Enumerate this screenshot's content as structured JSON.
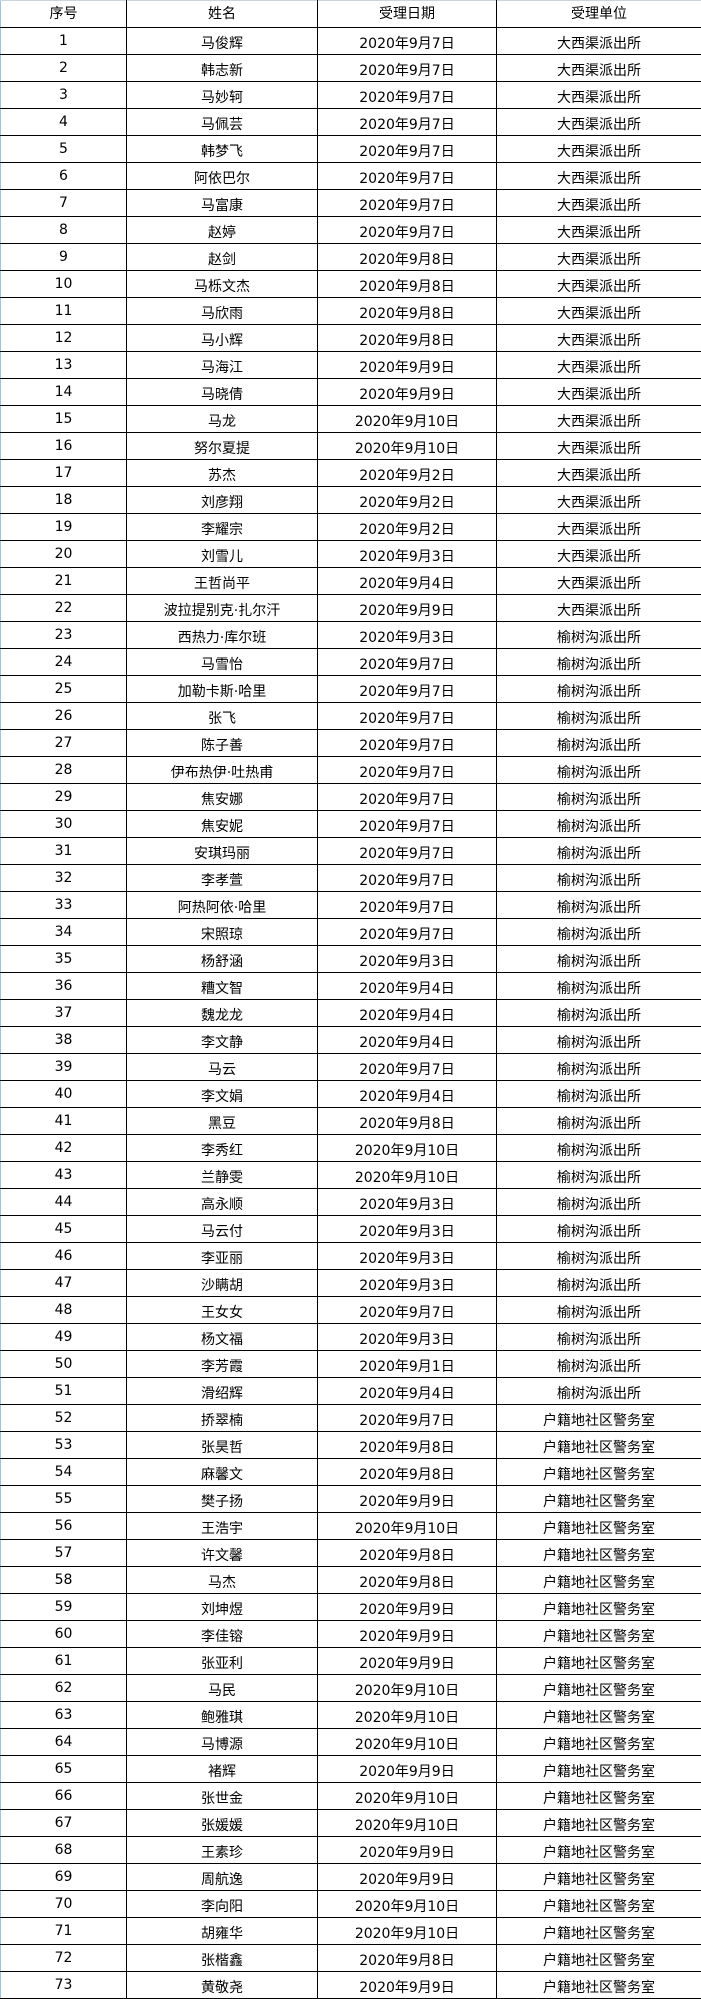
{
  "headers": [
    "序号",
    "姓名",
    "受理日期",
    "受理单位"
  ],
  "rows": [
    [
      "1",
      "马俊辉",
      "2020年9月7日",
      "大西渠派出所"
    ],
    [
      "2",
      "韩志新",
      "2020年9月7日",
      "大西渠派出所"
    ],
    [
      "3",
      "马妙轲",
      "2020年9月7日",
      "大西渠派出所"
    ],
    [
      "4",
      "马佩芸",
      "2020年9月7日",
      "大西渠派出所"
    ],
    [
      "5",
      "韩梦飞",
      "2020年9月7日",
      "大西渠派出所"
    ],
    [
      "6",
      "阿依巴尔",
      "2020年9月7日",
      "大西渠派出所"
    ],
    [
      "7",
      "马富康",
      "2020年9月7日",
      "大西渠派出所"
    ],
    [
      "8",
      "赵婷",
      "2020年9月7日",
      "大西渠派出所"
    ],
    [
      "9",
      "赵剑",
      "2020年9月8日",
      "大西渠派出所"
    ],
    [
      "10",
      "马栎文杰",
      "2020年9月8日",
      "大西渠派出所"
    ],
    [
      "11",
      "马欣雨",
      "2020年9月8日",
      "大西渠派出所"
    ],
    [
      "12",
      "马小辉",
      "2020年9月8日",
      "大西渠派出所"
    ],
    [
      "13",
      "马海江",
      "2020年9月9日",
      "大西渠派出所"
    ],
    [
      "14",
      "马晓倩",
      "2020年9月9日",
      "大西渠派出所"
    ],
    [
      "15",
      "马龙",
      "2020年9月10日",
      "大西渠派出所"
    ],
    [
      "16",
      "努尔夏提",
      "2020年9月10日",
      "大西渠派出所"
    ],
    [
      "17",
      "苏杰",
      "2020年9月2日",
      "大西渠派出所"
    ],
    [
      "18",
      "刘彦翔",
      "2020年9月2日",
      "大西渠派出所"
    ],
    [
      "19",
      "李耀宗",
      "2020年9月2日",
      "大西渠派出所"
    ],
    [
      "20",
      "刘雪儿",
      "2020年9月3日",
      "大西渠派出所"
    ],
    [
      "21",
      "王哲尚平",
      "2020年9月4日",
      "大西渠派出所"
    ],
    [
      "22",
      "波拉提别克·扎尔汗",
      "2020年9月9日",
      "大西渠派出所"
    ],
    [
      "23",
      "西热力·库尔班",
      "2020年9月3日",
      "榆树沟派出所"
    ],
    [
      "24",
      "马雪怡",
      "2020年9月7日",
      "榆树沟派出所"
    ],
    [
      "25",
      "加勒卡斯·哈里",
      "2020年9月7日",
      "榆树沟派出所"
    ],
    [
      "26",
      "张飞",
      "2020年9月7日",
      "榆树沟派出所"
    ],
    [
      "27",
      "陈子善",
      "2020年9月7日",
      "榆树沟派出所"
    ],
    [
      "28",
      "伊布热伊·吐热甫",
      "2020年9月7日",
      "榆树沟派出所"
    ],
    [
      "29",
      "焦安娜",
      "2020年9月7日",
      "榆树沟派出所"
    ],
    [
      "30",
      "焦安妮",
      "2020年9月7日",
      "榆树沟派出所"
    ],
    [
      "31",
      "安琪玛丽",
      "2020年9月7日",
      "榆树沟派出所"
    ],
    [
      "32",
      "李孝萱",
      "2020年9月7日",
      "榆树沟派出所"
    ],
    [
      "33",
      "阿热阿依·哈里",
      "2020年9月7日",
      "榆树沟派出所"
    ],
    [
      "34",
      "宋照琼",
      "2020年9月7日",
      "榆树沟派出所"
    ],
    [
      "35",
      "杨舒涵",
      "2020年9月3日",
      "榆树沟派出所"
    ],
    [
      "36",
      "糟文智",
      "2020年9月4日",
      "榆树沟派出所"
    ],
    [
      "37",
      "魏龙龙",
      "2020年9月4日",
      "榆树沟派出所"
    ],
    [
      "38",
      "李文静",
      "2020年9月4日",
      "榆树沟派出所"
    ],
    [
      "39",
      "马云",
      "2020年9月7日",
      "榆树沟派出所"
    ],
    [
      "40",
      "李文娟",
      "2020年9月4日",
      "榆树沟派出所"
    ],
    [
      "41",
      "黑豆",
      "2020年9月8日",
      "榆树沟派出所"
    ],
    [
      "42",
      "李秀红",
      "2020年9月10日",
      "榆树沟派出所"
    ],
    [
      "43",
      "兰静雯",
      "2020年9月10日",
      "榆树沟派出所"
    ],
    [
      "44",
      "高永顺",
      "2020年9月3日",
      "榆树沟派出所"
    ],
    [
      "45",
      "马云付",
      "2020年9月3日",
      "榆树沟派出所"
    ],
    [
      "46",
      "李亚丽",
      "2020年9月3日",
      "榆树沟派出所"
    ],
    [
      "47",
      "沙瞒胡",
      "2020年9月3日",
      "榆树沟派出所"
    ],
    [
      "48",
      "王女女",
      "2020年9月7日",
      "榆树沟派出所"
    ],
    [
      "49",
      "杨文福",
      "2020年9月3日",
      "榆树沟派出所"
    ],
    [
      "50",
      "李芳霞",
      "2020年9月1日",
      "榆树沟派出所"
    ],
    [
      "51",
      "滑绍辉",
      "2020年9月4日",
      "榆树沟派出所"
    ],
    [
      "52",
      "挢翠楠",
      "2020年9月7日",
      "户籍地社区警务室"
    ],
    [
      "53",
      "张昊哲",
      "2020年9月8日",
      "户籍地社区警务室"
    ],
    [
      "54",
      "麻馨文",
      "2020年9月8日",
      "户籍地社区警务室"
    ],
    [
      "55",
      "樊子扬",
      "2020年9月9日",
      "户籍地社区警务室"
    ],
    [
      "56",
      "王浩宇",
      "2020年9月10日",
      "户籍地社区警务室"
    ],
    [
      "57",
      "许文馨",
      "2020年9月8日",
      "户籍地社区警务室"
    ],
    [
      "58",
      "马杰",
      "2020年9月8日",
      "户籍地社区警务室"
    ],
    [
      "59",
      "刘坤煜",
      "2020年9月9日",
      "户籍地社区警务室"
    ],
    [
      "60",
      "李佳镕",
      "2020年9月9日",
      "户籍地社区警务室"
    ],
    [
      "61",
      "张亚利",
      "2020年9月9日",
      "户籍地社区警务室"
    ],
    [
      "62",
      "马民",
      "2020年9月10日",
      "户籍地社区警务室"
    ],
    [
      "63",
      "鲍雅琪",
      "2020年9月10日",
      "户籍地社区警务室"
    ],
    [
      "64",
      "马博源",
      "2020年9月10日",
      "户籍地社区警务室"
    ],
    [
      "65",
      "褚辉",
      "2020年9月9日",
      "户籍地社区警务室"
    ],
    [
      "66",
      "张世金",
      "2020年9月10日",
      "户籍地社区警务室"
    ],
    [
      "67",
      "张媛媛",
      "2020年9月10日",
      "户籍地社区警务室"
    ],
    [
      "68",
      "王素珍",
      "2020年9月9日",
      "户籍地社区警务室"
    ],
    [
      "69",
      "周航逸",
      "2020年9月9日",
      "户籍地社区警务室"
    ],
    [
      "70",
      "李向阳",
      "2020年9月10日",
      "户籍地社区警务室"
    ],
    [
      "71",
      "胡雍华",
      "2020年9月10日",
      "户籍地社区警务室"
    ],
    [
      "72",
      "张楷鑫",
      "2020年9月8日",
      "户籍地社区警务室"
    ],
    [
      "73",
      "黄敬尧",
      "2020年9月9日",
      "户籍地社区警务室"
    ]
  ]
}
